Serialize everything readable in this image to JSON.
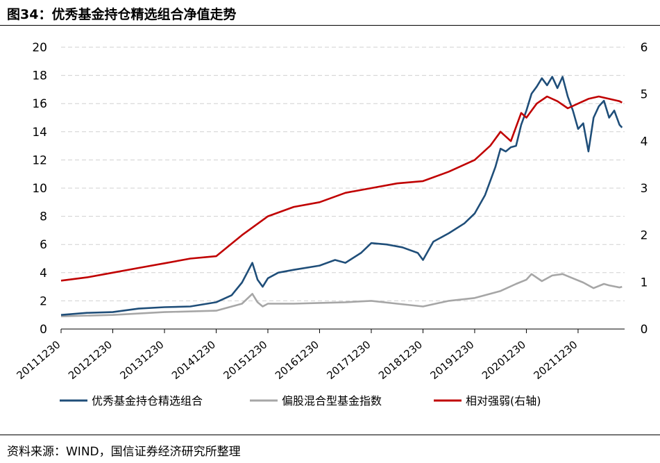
{
  "header": {
    "title": "图34：优秀基金持仓精选组合净值走势"
  },
  "footer": {
    "source": "资料来源：WIND，国信证券经济研究所整理"
  },
  "chart_data": {
    "type": "line",
    "title": "图34：优秀基金持仓精选组合净值走势",
    "x_tick_labels": [
      "20111230",
      "20121230",
      "20131230",
      "20141230",
      "20151230",
      "20161230",
      "20171230",
      "20181230",
      "20191230",
      "20201230",
      "20211230"
    ],
    "y_left": {
      "ylim": [
        0,
        20
      ],
      "ticks": [
        0,
        2,
        4,
        6,
        8,
        10,
        12,
        14,
        16,
        18,
        20
      ]
    },
    "y_right": {
      "ylim": [
        0,
        6
      ],
      "ticks": [
        0,
        1,
        2,
        3,
        4,
        5,
        6
      ]
    },
    "xlim": [
      0,
      10.9
    ],
    "grid": true,
    "legend_position": "bottom",
    "series": [
      {
        "name": "优秀基金持仓精选组合",
        "axis": "left",
        "color": "#1f4e79",
        "x": [
          0,
          0.5,
          1,
          1.5,
          2,
          2.5,
          3,
          3.3,
          3.5,
          3.7,
          3.8,
          3.9,
          4,
          4.2,
          4.5,
          5,
          5.3,
          5.5,
          5.8,
          6,
          6.3,
          6.6,
          6.9,
          7,
          7.2,
          7.5,
          7.8,
          8,
          8.2,
          8.4,
          8.5,
          8.6,
          8.7,
          8.8,
          8.9,
          9,
          9.1,
          9.2,
          9.3,
          9.4,
          9.5,
          9.6,
          9.7,
          9.8,
          9.9,
          10,
          10.1,
          10.2,
          10.3,
          10.4,
          10.5,
          10.6,
          10.7,
          10.8,
          10.85
        ],
        "values": [
          1.0,
          1.15,
          1.2,
          1.45,
          1.55,
          1.6,
          1.9,
          2.4,
          3.3,
          4.7,
          3.5,
          3.0,
          3.6,
          4.0,
          4.2,
          4.5,
          4.9,
          4.7,
          5.4,
          6.1,
          6.0,
          5.8,
          5.4,
          4.9,
          6.2,
          6.8,
          7.5,
          8.2,
          9.5,
          11.5,
          12.8,
          12.6,
          12.9,
          13.0,
          14.5,
          15.5,
          16.7,
          17.2,
          17.8,
          17.3,
          17.9,
          17.1,
          17.9,
          16.5,
          15.5,
          14.2,
          14.6,
          12.6,
          15.0,
          15.8,
          16.2,
          15.0,
          15.5,
          14.5,
          14.3
        ]
      },
      {
        "name": "偏股混合型基金指数",
        "axis": "left",
        "color": "#a6a6a6",
        "x": [
          0,
          1,
          2,
          3,
          3.5,
          3.7,
          3.8,
          3.9,
          4,
          4.5,
          5,
          5.5,
          6,
          6.5,
          7,
          7.5,
          8,
          8.5,
          8.8,
          9,
          9.1,
          9.3,
          9.5,
          9.7,
          9.9,
          10.1,
          10.3,
          10.5,
          10.6,
          10.8,
          10.85
        ],
        "values": [
          0.9,
          1.0,
          1.2,
          1.3,
          1.8,
          2.5,
          1.9,
          1.6,
          1.8,
          1.8,
          1.85,
          1.9,
          2.0,
          1.8,
          1.6,
          2.0,
          2.2,
          2.7,
          3.2,
          3.5,
          3.9,
          3.4,
          3.8,
          3.9,
          3.6,
          3.3,
          2.9,
          3.2,
          3.1,
          2.95,
          3.0
        ]
      },
      {
        "name": "相对强弱(右轴)",
        "axis": "right",
        "color": "#c00000",
        "x": [
          0,
          0.5,
          1,
          1.5,
          2,
          2.5,
          3,
          3.5,
          4,
          4.5,
          5,
          5.5,
          6,
          6.5,
          7,
          7.5,
          8,
          8.3,
          8.5,
          8.7,
          8.9,
          9,
          9.2,
          9.4,
          9.6,
          9.8,
          10,
          10.2,
          10.4,
          10.6,
          10.8,
          10.85
        ],
        "values": [
          1.03,
          1.1,
          1.2,
          1.3,
          1.4,
          1.5,
          1.55,
          2.0,
          2.4,
          2.6,
          2.7,
          2.9,
          3.0,
          3.1,
          3.15,
          3.35,
          3.6,
          3.9,
          4.2,
          4.0,
          4.6,
          4.5,
          4.8,
          4.95,
          4.85,
          4.7,
          4.8,
          4.9,
          4.95,
          4.9,
          4.85,
          4.82
        ]
      }
    ]
  }
}
